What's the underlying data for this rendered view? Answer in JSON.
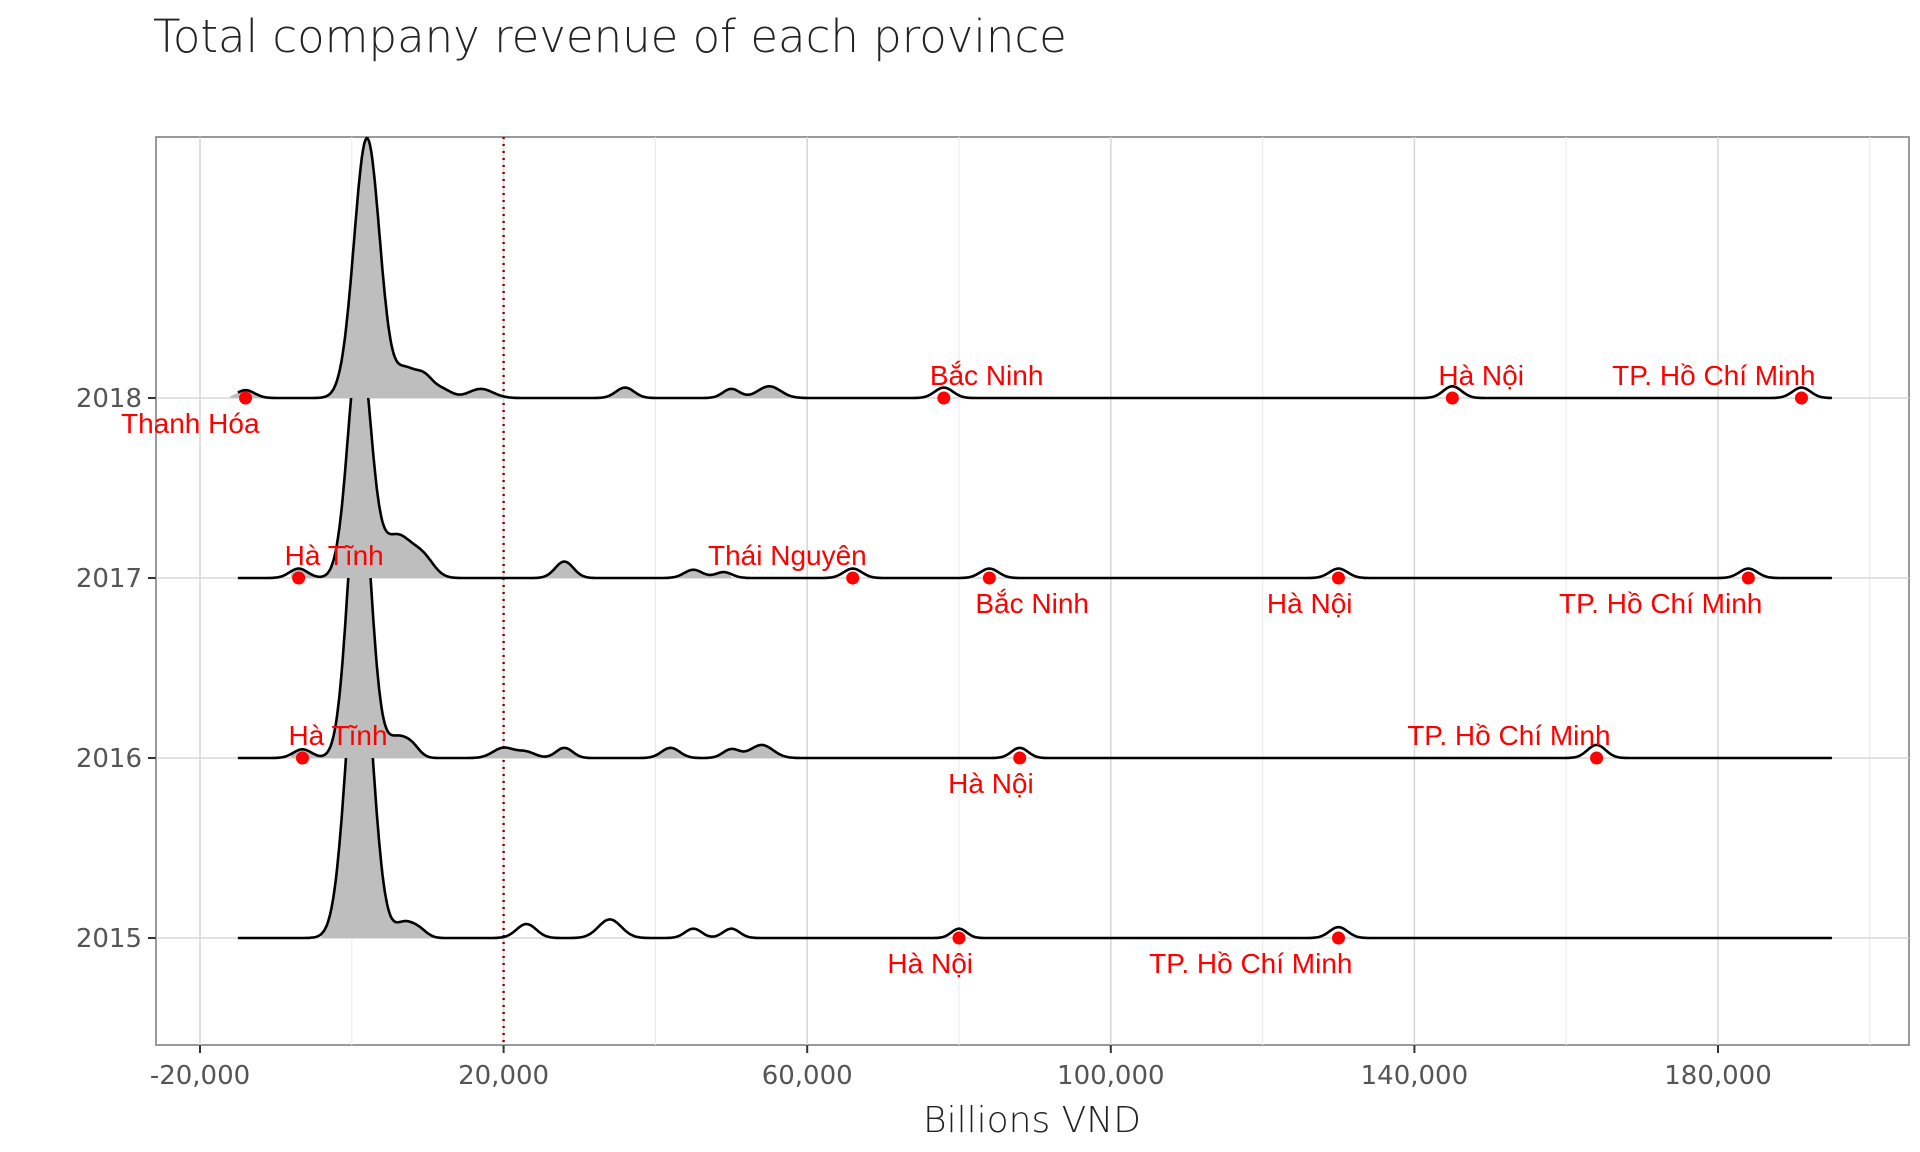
{
  "chart_data": {
    "type": "ridgeline",
    "title": "Total company revenue of each province",
    "xlabel": "Billions VND",
    "ylabel": "",
    "xlim": [
      -25000,
      205000
    ],
    "x_ticks": [
      -20000,
      20000,
      60000,
      100000,
      140000,
      180000
    ],
    "x_tick_labels": [
      "-20,000",
      "20,000",
      "60,000",
      "100,000",
      "140,000",
      "180,000"
    ],
    "reference_line": {
      "x": 20000,
      "style": "dotted",
      "color": "#8b0000"
    },
    "grid": true,
    "colors": {
      "fill": "#bebebe",
      "stroke": "#000000",
      "point": "#ff0000",
      "label": "#ff0000"
    },
    "rows": [
      {
        "year": "2015",
        "peak": {
          "x": 1000,
          "h": 310
        },
        "points": [
          {
            "x": 80000,
            "label": "Hà Nội",
            "label_pos": "below-left"
          },
          {
            "x": 130000,
            "label": "TP. Hồ Chí Minh",
            "label_pos": "below-left"
          }
        ]
      },
      {
        "year": "2016",
        "peak": {
          "x": 1000,
          "h": 290
        },
        "points": [
          {
            "x": -6500,
            "label": "Hà Tĩnh",
            "label_pos": "above-right"
          },
          {
            "x": 88000,
            "label": "Hà Nội",
            "label_pos": "below-left"
          },
          {
            "x": 164000,
            "label": "TP. Hồ Chí Minh",
            "label_pos": "above-left"
          }
        ]
      },
      {
        "year": "2017",
        "peak": {
          "x": 1000,
          "h": 235
        },
        "points": [
          {
            "x": -7000,
            "label": "Hà Tĩnh",
            "label_pos": "above-right"
          },
          {
            "x": 66000,
            "label": "Thái Nguyên",
            "label_pos": "above-left"
          },
          {
            "x": 84000,
            "label": "Bắc Ninh",
            "label_pos": "below-right"
          },
          {
            "x": 130000,
            "label": "Hà Nội",
            "label_pos": "below-left"
          },
          {
            "x": 184000,
            "label": "TP. Hồ Chí Minh",
            "label_pos": "below-left"
          }
        ]
      },
      {
        "year": "2018",
        "peak": {
          "x": 1000,
          "h": 260
        },
        "points": [
          {
            "x": -14000,
            "label": "Thanh Hóa",
            "label_pos": "below-left"
          },
          {
            "x": 78000,
            "label": "Bắc Ninh",
            "label_pos": "above-right"
          },
          {
            "x": 145000,
            "label": "Hà Nội",
            "label_pos": "above-right"
          },
          {
            "x": 191000,
            "label": "TP. Hồ Chí Minh",
            "label_pos": "above-left"
          }
        ]
      }
    ]
  }
}
